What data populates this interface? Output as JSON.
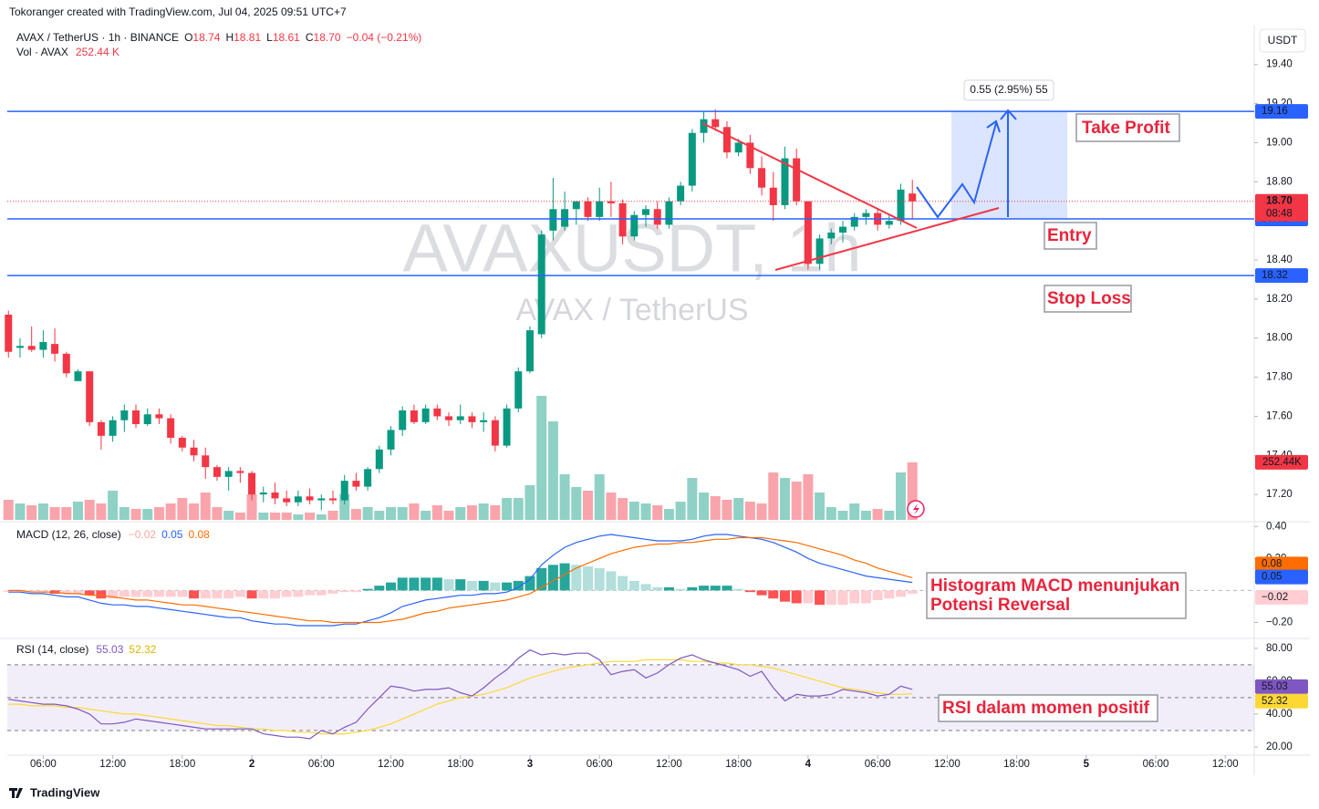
{
  "header": {
    "attribution": "Tokoranger created with TradingView.com, Jul 04, 2025 09:51 UTC+7",
    "symbol": "AVAX / TetherUS · 1h · BINANCE",
    "ohlc": [
      {
        "key": "O",
        "value": "18.74"
      },
      {
        "key": "H",
        "value": "18.81"
      },
      {
        "key": "L",
        "value": "18.61"
      },
      {
        "key": "C",
        "value": "18.70"
      }
    ],
    "change": "−0.04 (−0.21%)",
    "vol_title": "Vol · AVAX",
    "vol_value": "252.44 K",
    "currency": "USDT",
    "brand": "TradingView"
  },
  "watermark": {
    "symbol": "AVAXUSDT, 1h",
    "name": "AVAX / TetherUS"
  },
  "annotations": [
    "Take Profit",
    "Entry",
    "Stop Loss",
    "Histogram MACD menunjukan",
    "Potensi Reversal",
    "RSI dalam momen positif"
  ],
  "chart_data": {
    "type": "candlestick",
    "up_color": "#089981",
    "down_color": "#f23645",
    "xlim": [
      -0.1,
      107.5
    ],
    "xticks": [
      {
        "value": 3,
        "label": "06:00"
      },
      {
        "value": 9,
        "label": "12:00"
      },
      {
        "value": 15,
        "label": "18:00"
      },
      {
        "value": 21,
        "label": "2"
      },
      {
        "value": 27,
        "label": "06:00"
      },
      {
        "value": 33,
        "label": "12:00"
      },
      {
        "value": 39,
        "label": "18:00"
      },
      {
        "value": 45,
        "label": "3"
      },
      {
        "value": 51,
        "label": "06:00"
      },
      {
        "value": 57,
        "label": "12:00"
      },
      {
        "value": 63,
        "label": "18:00"
      },
      {
        "value": 69,
        "label": "4"
      },
      {
        "value": 75,
        "label": "06:00"
      },
      {
        "value": 81,
        "label": "12:00"
      },
      {
        "value": 87,
        "label": "18:00"
      },
      {
        "value": 93,
        "label": "5"
      },
      {
        "value": 99,
        "label": "06:00"
      },
      {
        "value": 105,
        "label": "12:00"
      }
    ],
    "ylim": [
      17.07,
      19.59
    ],
    "yticks": [
      {
        "value": 17.2,
        "label": "17.20"
      },
      {
        "value": 17.4,
        "label": "17.40"
      },
      {
        "value": 17.6,
        "label": "17.60"
      },
      {
        "value": 17.8,
        "label": "17.80"
      },
      {
        "value": 18,
        "label": "18.00"
      },
      {
        "value": 18.2,
        "label": "18.20"
      },
      {
        "value": 18.4,
        "label": "18.40"
      },
      {
        "value": 18.6,
        "label": "18.60"
      },
      {
        "value": 18.8,
        "label": "18.80"
      },
      {
        "value": 19,
        "label": "19.00"
      },
      {
        "value": 19.2,
        "label": "19.20"
      },
      {
        "value": 19.4,
        "label": "19.40"
      }
    ],
    "open": [
      18.12,
      17.95,
      17.96,
      17.94,
      17.97,
      17.92,
      17.78,
      17.83,
      17.57,
      17.5,
      17.58,
      17.63,
      17.56,
      17.61,
      17.59,
      17.49,
      17.44,
      17.4,
      17.34,
      17.29,
      17.32,
      17.31,
      17.2,
      17.21,
      17.18,
      17.16,
      17.19,
      17.17,
      17.18,
      17.17,
      17.27,
      17.24,
      17.33,
      17.43,
      17.53,
      17.63,
      17.57,
      17.64,
      17.6,
      17.58,
      17.6,
      17.57,
      17.58,
      17.45,
      17.64,
      17.83,
      18.02,
      18.55,
      18.57,
      18.66,
      18.7,
      18.62,
      18.7,
      18.69,
      18.52,
      18.63,
      18.66,
      18.58,
      18.7,
      18.78,
      19.05,
      19.12,
      19.08,
      18.95,
      19.0,
      18.87,
      18.77,
      18.68,
      18.92,
      18.7,
      18.38,
      18.51,
      18.54,
      18.57,
      18.62,
      18.64,
      18.58,
      18.6,
      18.74
    ],
    "high": [
      18.14,
      18.0,
      18.06,
      18.04,
      18.05,
      17.93,
      17.84,
      17.83,
      17.58,
      17.6,
      17.66,
      17.66,
      17.64,
      17.64,
      17.61,
      17.5,
      17.48,
      17.44,
      17.35,
      17.34,
      17.34,
      17.32,
      17.24,
      17.26,
      17.22,
      17.22,
      17.23,
      17.2,
      17.22,
      17.3,
      17.31,
      17.34,
      17.45,
      17.55,
      17.65,
      17.66,
      17.66,
      17.66,
      17.62,
      17.66,
      17.62,
      17.62,
      17.6,
      17.66,
      17.85,
      18.06,
      18.55,
      18.82,
      18.75,
      18.7,
      18.72,
      18.77,
      18.8,
      18.71,
      18.65,
      18.68,
      18.7,
      18.72,
      18.8,
      19.07,
      19.16,
      19.17,
      19.11,
      19.02,
      19.04,
      18.93,
      18.85,
      18.98,
      18.97,
      18.7,
      18.53,
      18.56,
      18.6,
      18.64,
      18.66,
      18.66,
      18.63,
      18.79,
      18.81
    ],
    "low": [
      17.9,
      17.9,
      17.93,
      17.9,
      17.88,
      17.8,
      17.78,
      17.55,
      17.43,
      17.47,
      17.52,
      17.54,
      17.55,
      17.56,
      17.46,
      17.42,
      17.37,
      17.28,
      17.27,
      17.22,
      17.26,
      17.17,
      17.16,
      17.15,
      17.14,
      17.14,
      17.15,
      17.12,
      17.15,
      17.15,
      17.22,
      17.22,
      17.31,
      17.4,
      17.5,
      17.56,
      17.56,
      17.58,
      17.55,
      17.56,
      17.54,
      17.52,
      17.42,
      17.44,
      17.62,
      17.82,
      18.0,
      18.5,
      18.55,
      18.58,
      18.6,
      18.6,
      18.62,
      18.48,
      18.5,
      18.57,
      18.56,
      18.56,
      18.68,
      18.75,
      19.0,
      19.06,
      18.92,
      18.93,
      18.84,
      18.73,
      18.6,
      18.66,
      18.68,
      18.35,
      18.35,
      18.48,
      18.49,
      18.55,
      18.58,
      18.55,
      18.56,
      18.58,
      18.61
    ],
    "close": [
      17.93,
      17.96,
      17.94,
      17.98,
      17.92,
      17.82,
      17.83,
      17.57,
      17.5,
      17.58,
      17.63,
      17.56,
      17.61,
      17.59,
      17.49,
      17.44,
      17.4,
      17.34,
      17.29,
      17.32,
      17.31,
      17.2,
      17.21,
      17.18,
      17.16,
      17.19,
      17.17,
      17.18,
      17.17,
      17.27,
      17.24,
      17.33,
      17.43,
      17.53,
      17.63,
      17.57,
      17.64,
      17.6,
      17.58,
      17.6,
      17.57,
      17.58,
      17.45,
      17.64,
      17.83,
      18.04,
      18.53,
      18.66,
      18.66,
      18.7,
      18.62,
      18.7,
      18.69,
      18.52,
      18.63,
      18.66,
      18.58,
      18.7,
      18.78,
      19.05,
      19.12,
      19.08,
      18.95,
      19.0,
      18.87,
      18.77,
      18.68,
      18.92,
      18.7,
      18.38,
      18.51,
      18.54,
      18.57,
      18.62,
      18.64,
      18.58,
      18.6,
      18.76,
      18.7
    ],
    "volume": [
      88,
      72,
      64,
      72,
      56,
      56,
      80,
      88,
      72,
      128,
      56,
      48,
      48,
      56,
      72,
      96,
      72,
      120,
      56,
      40,
      32,
      112,
      32,
      32,
      32,
      24,
      32,
      24,
      40,
      112,
      48,
      56,
      40,
      56,
      56,
      72,
      40,
      64,
      40,
      56,
      64,
      72,
      64,
      96,
      96,
      152,
      544,
      432,
      200,
      144,
      128,
      200,
      120,
      96,
      80,
      72,
      64,
      48,
      80,
      184,
      120,
      104,
      88,
      96,
      80,
      72,
      208,
      184,
      168,
      200,
      120,
      56,
      40,
      72,
      40,
      48,
      40,
      208,
      252.44
    ],
    "volume_label": "252.44K",
    "levels": [
      19.16,
      18.61,
      18.32
    ],
    "level_color": "#2962ff",
    "last_price": {
      "value": 18.7,
      "label": "18.70"
    },
    "countdown": "08:48",
    "position": {
      "label": "0.55 (2.95%) 55"
    },
    "macd": {
      "title": "MACD (12, 26, close)",
      "ylim": [
        -0.3,
        0.43
      ],
      "yticks": [
        {
          "value": -0.2,
          "label": "−0.20"
        },
        {
          "value": 0.2,
          "label": "0.20"
        },
        {
          "value": 0.4,
          "label": "0.40"
        }
      ],
      "macd_color": "#2962ff",
      "signal_color": "#ff6d00",
      "macd": [
        -0.01,
        -0.01,
        -0.02,
        -0.02,
        -0.03,
        -0.04,
        -0.04,
        -0.06,
        -0.08,
        -0.09,
        -0.09,
        -0.1,
        -0.1,
        -0.11,
        -0.12,
        -0.13,
        -0.14,
        -0.15,
        -0.16,
        -0.17,
        -0.17,
        -0.19,
        -0.2,
        -0.21,
        -0.21,
        -0.22,
        -0.22,
        -0.22,
        -0.22,
        -0.21,
        -0.21,
        -0.19,
        -0.17,
        -0.14,
        -0.1,
        -0.08,
        -0.06,
        -0.05,
        -0.04,
        -0.03,
        -0.03,
        -0.02,
        -0.02,
        -0.01,
        0.02,
        0.07,
        0.16,
        0.22,
        0.27,
        0.3,
        0.32,
        0.34,
        0.35,
        0.34,
        0.33,
        0.32,
        0.31,
        0.31,
        0.31,
        0.32,
        0.34,
        0.35,
        0.35,
        0.34,
        0.33,
        0.32,
        0.3,
        0.27,
        0.24,
        0.2,
        0.17,
        0.15,
        0.13,
        0.11,
        0.09,
        0.08,
        0.07,
        0.06,
        0.05
      ],
      "signal": [
        0.0,
        0.0,
        -0.01,
        -0.01,
        -0.01,
        -0.02,
        -0.02,
        -0.03,
        -0.03,
        -0.04,
        -0.05,
        -0.06,
        -0.06,
        -0.07,
        -0.08,
        -0.09,
        -0.09,
        -0.1,
        -0.11,
        -0.12,
        -0.13,
        -0.14,
        -0.15,
        -0.16,
        -0.17,
        -0.18,
        -0.19,
        -0.19,
        -0.2,
        -0.2,
        -0.2,
        -0.2,
        -0.2,
        -0.19,
        -0.18,
        -0.16,
        -0.14,
        -0.13,
        -0.11,
        -0.1,
        -0.09,
        -0.08,
        -0.07,
        -0.06,
        -0.04,
        -0.02,
        0.02,
        0.06,
        0.1,
        0.14,
        0.17,
        0.2,
        0.23,
        0.25,
        0.27,
        0.28,
        0.29,
        0.29,
        0.3,
        0.3,
        0.31,
        0.32,
        0.32,
        0.33,
        0.33,
        0.33,
        0.32,
        0.31,
        0.3,
        0.28,
        0.26,
        0.24,
        0.22,
        0.19,
        0.17,
        0.14,
        0.12,
        0.1,
        0.08
      ],
      "histogram": [
        -0.01,
        -0.01,
        -0.01,
        -0.01,
        -0.02,
        -0.02,
        -0.02,
        -0.03,
        -0.05,
        -0.05,
        -0.04,
        -0.04,
        -0.04,
        -0.04,
        -0.04,
        -0.04,
        -0.05,
        -0.05,
        -0.05,
        -0.05,
        -0.04,
        -0.05,
        -0.05,
        -0.05,
        -0.04,
        -0.04,
        -0.03,
        -0.03,
        -0.02,
        -0.01,
        -0.01,
        0.01,
        0.03,
        0.05,
        0.08,
        0.08,
        0.08,
        0.08,
        0.07,
        0.07,
        0.06,
        0.06,
        0.05,
        0.05,
        0.06,
        0.09,
        0.14,
        0.16,
        0.17,
        0.16,
        0.15,
        0.14,
        0.12,
        0.09,
        0.06,
        0.04,
        0.02,
        0.02,
        0.01,
        0.02,
        0.03,
        0.03,
        0.03,
        0.01,
        -0.01,
        -0.03,
        -0.05,
        -0.07,
        -0.08,
        -0.08,
        -0.09,
        -0.09,
        -0.09,
        -0.08,
        -0.08,
        -0.06,
        -0.05,
        -0.04,
        -0.02
      ],
      "histogram_label": "−0.02"
    },
    "rsi": {
      "title": "RSI (14, close)",
      "ylim": [
        15,
        86
      ],
      "yticks": [
        {
          "value": 20,
          "label": "20.00"
        },
        {
          "value": 40,
          "label": "40.00"
        },
        {
          "value": 60,
          "label": "60.00"
        },
        {
          "value": 80,
          "label": "80.00"
        }
      ],
      "band": [
        30,
        70
      ],
      "midline": 50,
      "rsi_color": "#7e57c2",
      "ma_color": "#fdd835",
      "rsi": [
        49,
        48,
        47,
        46,
        46,
        45,
        43,
        40,
        34,
        34,
        35,
        37,
        36,
        35,
        34,
        33,
        32,
        31,
        31,
        31,
        31,
        31,
        28,
        27,
        26,
        26,
        25,
        30,
        28,
        32,
        35,
        43,
        50,
        57,
        56,
        54,
        55,
        55,
        56,
        53,
        51,
        56,
        62,
        67,
        74,
        79,
        76,
        77,
        76,
        77,
        77,
        73,
        64,
        66,
        67,
        62,
        65,
        70,
        74,
        76,
        73,
        71,
        69,
        67,
        63,
        66,
        56,
        48,
        52,
        51,
        51,
        52,
        55,
        54,
        53,
        51,
        52,
        57,
        55.03
      ],
      "rsi_ma": [
        46,
        46,
        45,
        45,
        45,
        44,
        44,
        43,
        42,
        41,
        40,
        40,
        39,
        38,
        37,
        36,
        35,
        34,
        33,
        33,
        32,
        31,
        31,
        30,
        30,
        29,
        29,
        28,
        28,
        28,
        29,
        30,
        32,
        34,
        37,
        40,
        43,
        46,
        48,
        50,
        51,
        52,
        54,
        56,
        59,
        62,
        64,
        66,
        68,
        69,
        70,
        71,
        72,
        72,
        72,
        73,
        73,
        73,
        73,
        72,
        72,
        71,
        71,
        70,
        70,
        69,
        68,
        66,
        64,
        62,
        60,
        58,
        56,
        55,
        54,
        53,
        52,
        52,
        52.32
      ]
    }
  }
}
